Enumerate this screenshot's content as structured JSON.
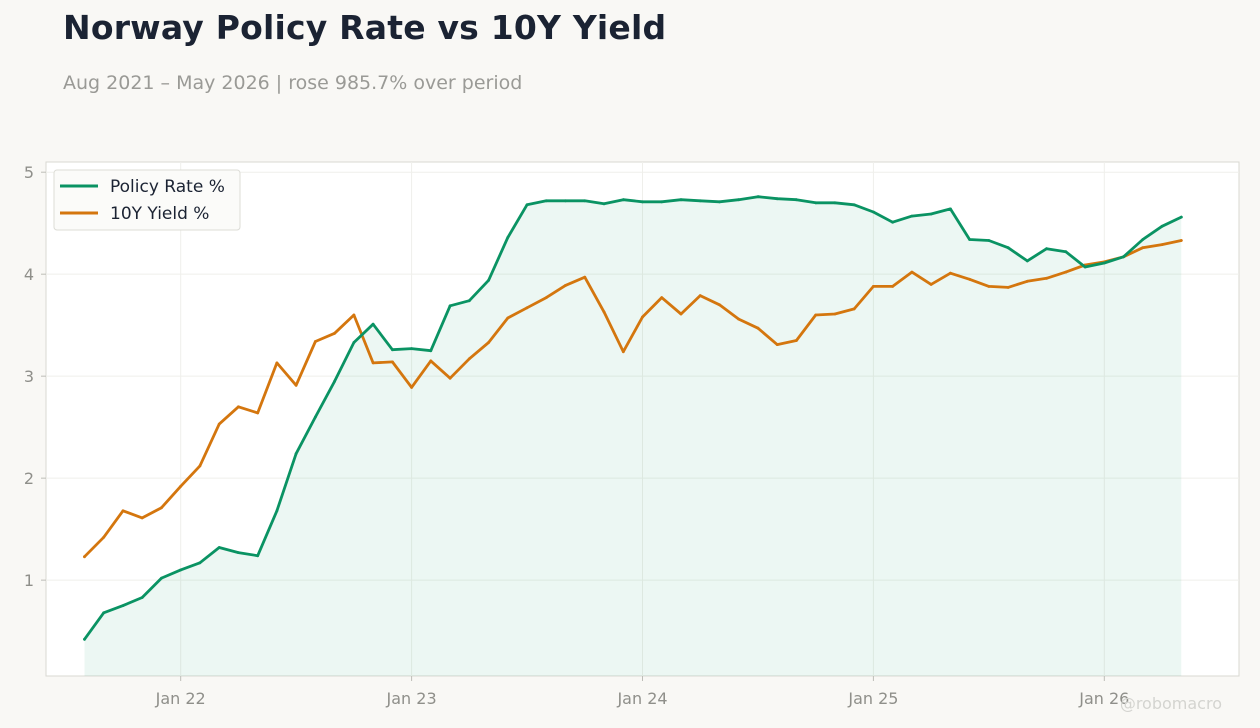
{
  "chart_data": {
    "type": "line",
    "title": "Norway Policy Rate vs 10Y Yield",
    "subtitle": "Aug 2021 – May 2026 | rose 985.7% over period",
    "x_start": "2021-08",
    "x_ticks": [
      {
        "date": "2022-01",
        "label": "Jan 22"
      },
      {
        "date": "2023-01",
        "label": "Jan 23"
      },
      {
        "date": "2024-01",
        "label": "Jan 24"
      },
      {
        "date": "2025-01",
        "label": "Jan 25"
      },
      {
        "date": "2026-01",
        "label": "Jan 26"
      }
    ],
    "xlim": [
      "2021-06",
      "2026-08"
    ],
    "ylim": [
      0.06,
      5.1
    ],
    "y_ticks": [
      1,
      2,
      3,
      4,
      5
    ],
    "grid": true,
    "legend": "top-left",
    "series": [
      {
        "name": "Policy Rate %",
        "color": "#0a9363",
        "fill": true,
        "values": [
          0.42,
          0.68,
          0.75,
          0.83,
          1.02,
          1.1,
          1.17,
          1.32,
          1.27,
          1.24,
          1.68,
          2.24,
          2.6,
          2.95,
          3.33,
          3.51,
          3.26,
          3.27,
          3.25,
          3.69,
          3.74,
          3.94,
          4.36,
          4.68,
          4.72,
          4.72,
          4.72,
          4.69,
          4.73,
          4.71,
          4.71,
          4.73,
          4.72,
          4.71,
          4.73,
          4.76,
          4.74,
          4.73,
          4.7,
          4.7,
          4.68,
          4.61,
          4.51,
          4.57,
          4.59,
          4.64,
          4.34,
          4.33,
          4.26,
          4.13,
          4.25,
          4.22,
          4.07,
          4.11,
          4.17,
          4.34,
          4.47,
          4.56
        ]
      },
      {
        "name": "10Y Yield %",
        "color": "#d4760e",
        "fill": false,
        "values": [
          1.23,
          1.42,
          1.68,
          1.61,
          1.71,
          1.92,
          2.12,
          2.53,
          2.7,
          2.64,
          3.13,
          2.91,
          3.34,
          3.42,
          3.6,
          3.13,
          3.14,
          2.89,
          3.15,
          2.98,
          3.17,
          3.33,
          3.57,
          3.67,
          3.77,
          3.89,
          3.97,
          3.63,
          3.24,
          3.58,
          3.77,
          3.61,
          3.79,
          3.7,
          3.56,
          3.47,
          3.31,
          3.35,
          3.6,
          3.61,
          3.66,
          3.88,
          3.88,
          4.02,
          3.9,
          4.01,
          3.95,
          3.88,
          3.87,
          3.93,
          3.96,
          4.02,
          4.09,
          4.12,
          4.17,
          4.26,
          4.29,
          4.33
        ]
      }
    ]
  },
  "watermark": "@robomacro"
}
